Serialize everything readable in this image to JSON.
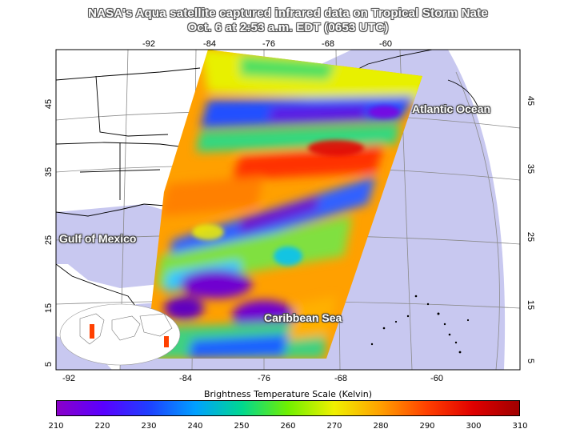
{
  "title": {
    "line1": "NASA's Aqua satellite captured infrared data on Tropical Storm Nate",
    "line2": "Oct. 6 at 2:53 a.m. EDT (0653 UTC)"
  },
  "map": {
    "lon_labels_top": [
      "-92",
      "-84",
      "-76",
      "-68",
      "-60"
    ],
    "lon_labels_bottom": [
      "-92",
      "-84",
      "-76",
      "-68",
      "-60"
    ],
    "lat_labels_left": [
      "45",
      "35",
      "25",
      "15",
      "5"
    ],
    "lat_labels_right": [
      "45",
      "35",
      "25",
      "15",
      "5"
    ],
    "region_labels": {
      "atlantic": "Atlantic Ocean",
      "gulf": "Gulf of Mexico",
      "caribbean": "Caribbean Sea"
    },
    "colors": {
      "ocean": "#c8c8f0",
      "land": "#ffffff",
      "coast": "#000000"
    }
  },
  "colorbar": {
    "title": "Brightness Temperature Scale (Kelvin)",
    "ticks": [
      "210",
      "220",
      "230",
      "240",
      "250",
      "260",
      "270",
      "280",
      "290",
      "300",
      "310"
    ],
    "range": [
      210,
      310
    ]
  }
}
